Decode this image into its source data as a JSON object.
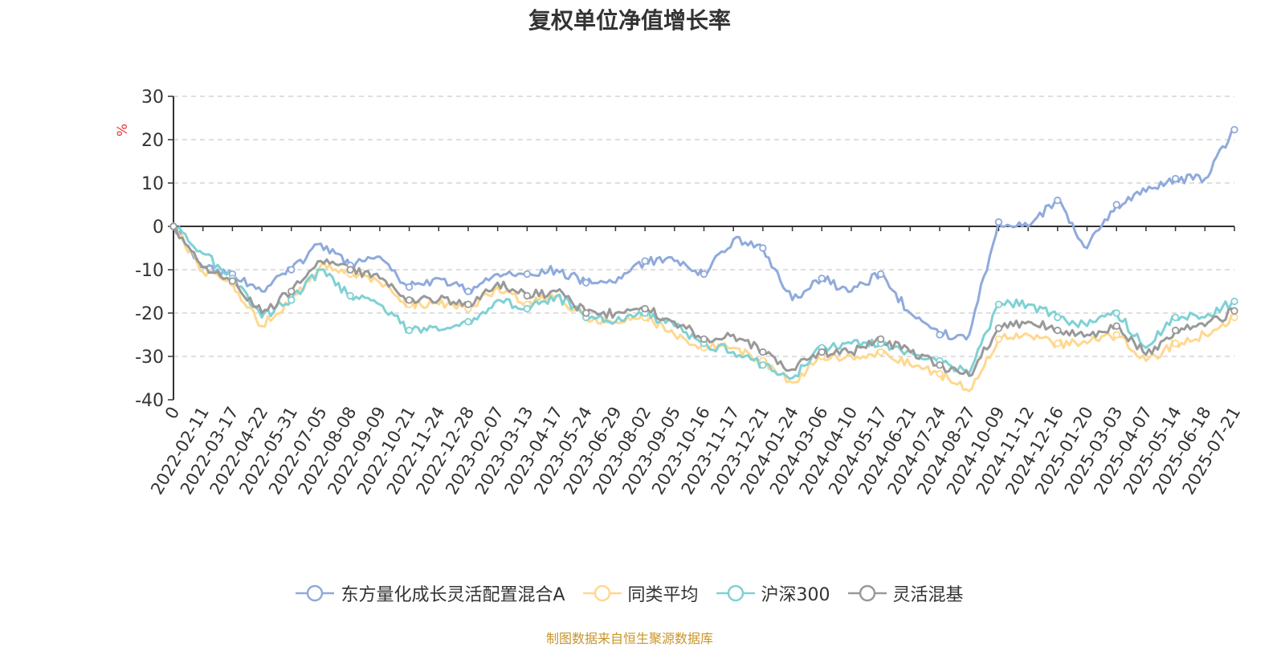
{
  "chart_data": {
    "type": "line",
    "title": "复权单位净值增长率",
    "ylabel": "%",
    "ylim": [
      -40,
      30
    ],
    "yticks": [
      30,
      20,
      10,
      0,
      -10,
      -20,
      -30,
      -40
    ],
    "grid": true,
    "legend_position": "bottom",
    "x_labels": [
      "0",
      "2022-02-11",
      "2022-03-17",
      "2022-04-22",
      "2022-05-31",
      "2022-07-05",
      "2022-08-08",
      "2022-09-09",
      "2022-10-21",
      "2022-11-24",
      "2022-12-28",
      "2023-02-07",
      "2023-03-13",
      "2023-04-17",
      "2023-05-24",
      "2023-06-29",
      "2023-08-02",
      "2023-09-05",
      "2023-10-16",
      "2023-11-17",
      "2023-12-21",
      "2024-01-24",
      "2024-03-06",
      "2024-04-10",
      "2024-05-17",
      "2024-06-21",
      "2024-07-24",
      "2024-08-27",
      "2024-10-09",
      "2024-11-12",
      "2024-12-16",
      "2025-01-20",
      "2025-03-03",
      "2025-04-07",
      "2025-05-14",
      "2025-06-18",
      "2025-07-21"
    ],
    "series": [
      {
        "name": "东方量化成长灵活配置混合A",
        "color": "#8faadc",
        "values": [
          0,
          -9.3,
          -11,
          -15,
          -10,
          -4,
          -9,
          -7,
          -14,
          -12,
          -15,
          -11,
          -11,
          -10,
          -13,
          -13,
          -8,
          -8,
          -11,
          -3,
          -5,
          -17,
          -12,
          -15,
          -11,
          -20,
          -25,
          -25,
          1,
          0,
          6,
          -5,
          5,
          8,
          11,
          11,
          22.3
        ]
      },
      {
        "name": "同类平均",
        "color": "#ffd88f",
        "values": [
          0,
          -10.5,
          -13,
          -23,
          -17,
          -9,
          -11,
          -13,
          -18,
          -18,
          -19,
          -14,
          -18,
          -16,
          -21,
          -22,
          -21,
          -25,
          -28,
          -28,
          -31,
          -36,
          -30,
          -30,
          -29,
          -32,
          -34,
          -38,
          -26,
          -25,
          -27,
          -27,
          -25,
          -31,
          -27,
          -25,
          -21
        ]
      },
      {
        "name": "沪深300",
        "color": "#7fd1d4",
        "values": [
          0,
          -6.3,
          -12,
          -21,
          -17,
          -10,
          -16,
          -18,
          -24,
          -24,
          -22,
          -17,
          -19,
          -16,
          -21,
          -22,
          -20,
          -23,
          -27,
          -29,
          -32,
          -35,
          -28,
          -27,
          -27,
          -29,
          -31,
          -34,
          -18,
          -18,
          -21,
          -23,
          -20,
          -28,
          -21,
          -21,
          -17.3
        ]
      },
      {
        "name": "灵活混基",
        "color": "#999999",
        "values": [
          0,
          -9.5,
          -12.6,
          -20,
          -15,
          -8,
          -10,
          -12,
          -17,
          -17,
          -18,
          -13,
          -16,
          -15,
          -20,
          -20,
          -19,
          -22,
          -26,
          -25,
          -29,
          -33,
          -29,
          -29,
          -26,
          -29,
          -32,
          -34.5,
          -23.5,
          -22,
          -24,
          -25,
          -23,
          -29.6,
          -24,
          -23,
          -19.5
        ]
      }
    ]
  },
  "legend": {
    "items": [
      "东方量化成长灵活配置混合A",
      "同类平均",
      "沪深300",
      "灵活混基"
    ]
  },
  "source_note": "制图数据来自恒生聚源数据库"
}
